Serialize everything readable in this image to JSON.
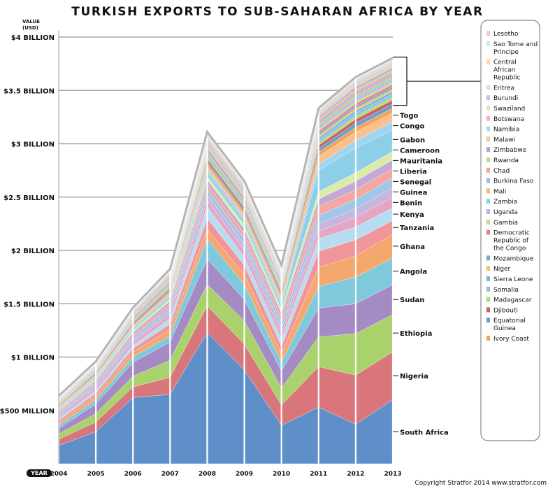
{
  "chart_data": {
    "type": "area",
    "title": "TURKISH EXPORTS TO SUB-SAHARAN AFRICA BY YEAR",
    "ylabel": "VALUE (USD)",
    "xlabel": "YEAR",
    "ylim": [
      0,
      4000000000
    ],
    "yticks": [
      {
        "value": 500000000,
        "label": "$500 MILLION"
      },
      {
        "value": 1000000000,
        "label": "$1 BILLION"
      },
      {
        "value": 1500000000,
        "label": "$1.5 BILLION"
      },
      {
        "value": 2000000000,
        "label": "$2 BILLION"
      },
      {
        "value": 2500000000,
        "label": "$2.5 BILLION"
      },
      {
        "value": 3000000000,
        "label": "$3 BILLION"
      },
      {
        "value": 3500000000,
        "label": "$3.5 BILLION"
      },
      {
        "value": 4000000000,
        "label": "$4 BILLION"
      }
    ],
    "x": [
      "2004",
      "2005",
      "2006",
      "2007",
      "2008",
      "2009",
      "2010",
      "2011",
      "2012",
      "2013"
    ],
    "grid": true,
    "stacked": true,
    "value_unit": "USD million",
    "series": [
      {
        "name": "South Africa",
        "color": "#5f8fc9",
        "values": [
          170,
          300,
          620,
          650,
          1230,
          880,
          360,
          530,
          370,
          600
        ]
      },
      {
        "name": "Nigeria",
        "color": "#d9767b",
        "values": [
          60,
          90,
          100,
          160,
          250,
          240,
          190,
          380,
          460,
          450
        ]
      },
      {
        "name": "Ethiopia",
        "color": "#a9d26c",
        "values": [
          50,
          80,
          100,
          160,
          200,
          220,
          160,
          280,
          390,
          350
        ]
      },
      {
        "name": "Sudan",
        "color": "#a58bc4",
        "values": [
          50,
          90,
          130,
          170,
          240,
          200,
          160,
          270,
          280,
          280
        ]
      },
      {
        "name": "Angola",
        "color": "#7ec9dc",
        "values": [
          30,
          40,
          50,
          60,
          190,
          140,
          80,
          200,
          250,
          250
        ]
      },
      {
        "name": "Ghana",
        "color": "#f4a86e",
        "values": [
          25,
          35,
          45,
          60,
          90,
          90,
          80,
          180,
          200,
          220
        ]
      },
      {
        "name": "Tanzania",
        "color": "#f1959b",
        "values": [
          20,
          25,
          35,
          50,
          100,
          90,
          70,
          150,
          150,
          130
        ]
      },
      {
        "name": "Kenya",
        "color": "#b6ddf2",
        "values": [
          20,
          25,
          30,
          50,
          110,
          80,
          70,
          120,
          120,
          120
        ]
      },
      {
        "name": "Benin",
        "color": "#e6a5c2",
        "values": [
          20,
          25,
          30,
          40,
          60,
          60,
          50,
          70,
          90,
          100
        ]
      },
      {
        "name": "Guinea",
        "color": "#c7b6de",
        "values": [
          15,
          20,
          25,
          35,
          55,
          55,
          50,
          70,
          80,
          90
        ]
      },
      {
        "name": "Senegal",
        "color": "#9fc7e9",
        "values": [
          15,
          20,
          25,
          35,
          50,
          55,
          50,
          80,
          90,
          90
        ]
      },
      {
        "name": "Liberia",
        "color": "#f4a7a2",
        "values": [
          10,
          15,
          20,
          30,
          45,
          50,
          50,
          80,
          90,
          90
        ]
      },
      {
        "name": "Mauritania",
        "color": "#c4a8d8",
        "values": [
          10,
          15,
          20,
          25,
          40,
          40,
          40,
          70,
          80,
          80
        ]
      },
      {
        "name": "Cameroon",
        "color": "#dbecaa",
        "values": [
          10,
          15,
          20,
          25,
          40,
          40,
          40,
          70,
          80,
          80
        ]
      },
      {
        "name": "Gabon",
        "color": "#8ecfe8",
        "values": [
          10,
          12,
          15,
          20,
          35,
          35,
          35,
          200,
          230,
          200
        ]
      },
      {
        "name": "Congo",
        "color": "#a2d4f2",
        "values": [
          8,
          10,
          12,
          18,
          30,
          30,
          30,
          60,
          70,
          80
        ]
      },
      {
        "name": "Togo",
        "color": "#fac08c",
        "values": [
          8,
          10,
          12,
          18,
          30,
          30,
          30,
          70,
          80,
          80
        ]
      },
      {
        "name": "Ivory Coast",
        "color": "#f0a45c",
        "values": [
          8,
          10,
          12,
          15,
          25,
          25,
          25,
          40,
          45,
          45
        ]
      },
      {
        "name": "Equatorial Guinea",
        "color": "#6b9ed3",
        "values": [
          6,
          8,
          10,
          12,
          20,
          20,
          20,
          35,
          40,
          40
        ]
      },
      {
        "name": "Djibouti",
        "color": "#d45c5c",
        "values": [
          6,
          8,
          10,
          12,
          20,
          20,
          20,
          30,
          35,
          35
        ]
      },
      {
        "name": "Madagascar",
        "color": "#b5d87a",
        "values": [
          5,
          7,
          9,
          11,
          18,
          18,
          18,
          25,
          28,
          28
        ]
      },
      {
        "name": "Somalia",
        "color": "#8fc2de",
        "values": [
          5,
          7,
          9,
          11,
          18,
          18,
          18,
          25,
          28,
          28
        ]
      },
      {
        "name": "Sierra Leone",
        "color": "#6fbddf",
        "values": [
          5,
          6,
          8,
          10,
          15,
          15,
          15,
          22,
          25,
          25
        ]
      },
      {
        "name": "Niger",
        "color": "#f6c16b",
        "values": [
          5,
          6,
          8,
          10,
          15,
          15,
          15,
          20,
          22,
          22
        ]
      },
      {
        "name": "Mozambique",
        "color": "#7fa6d3",
        "values": [
          5,
          6,
          8,
          10,
          15,
          15,
          15,
          20,
          22,
          22
        ]
      },
      {
        "name": "Democratic Republic of the Congo",
        "color": "#e97d84",
        "values": [
          5,
          6,
          8,
          10,
          15,
          15,
          15,
          20,
          22,
          22
        ]
      },
      {
        "name": "Gambia",
        "color": "#c0de8e",
        "values": [
          4,
          5,
          7,
          9,
          12,
          12,
          12,
          18,
          20,
          20
        ]
      },
      {
        "name": "Uganda",
        "color": "#c3b1dc",
        "values": [
          4,
          5,
          7,
          9,
          12,
          12,
          12,
          18,
          20,
          20
        ]
      },
      {
        "name": "Zambia",
        "color": "#86cfe3",
        "values": [
          4,
          5,
          7,
          9,
          12,
          12,
          12,
          18,
          20,
          20
        ]
      },
      {
        "name": "Mali",
        "color": "#f8b27a",
        "values": [
          4,
          5,
          7,
          9,
          12,
          12,
          12,
          18,
          20,
          20
        ]
      },
      {
        "name": "Burkina Faso",
        "color": "#98b9e0",
        "values": [
          4,
          5,
          7,
          9,
          12,
          12,
          12,
          18,
          20,
          20
        ]
      },
      {
        "name": "Chad",
        "color": "#f1a1a6",
        "values": [
          3,
          4,
          6,
          8,
          10,
          10,
          10,
          15,
          18,
          18
        ]
      },
      {
        "name": "Rwanda",
        "color": "#bad996",
        "values": [
          3,
          4,
          6,
          8,
          10,
          10,
          10,
          15,
          18,
          18
        ]
      },
      {
        "name": "Zimbabwe",
        "color": "#b6a2d6",
        "values": [
          3,
          4,
          6,
          8,
          10,
          10,
          10,
          15,
          18,
          18
        ]
      },
      {
        "name": "Malawi",
        "color": "#f7c49a",
        "values": [
          3,
          4,
          5,
          7,
          9,
          9,
          9,
          12,
          14,
          14
        ]
      },
      {
        "name": "Namibia",
        "color": "#b3d7ef",
        "values": [
          3,
          4,
          5,
          7,
          9,
          9,
          9,
          12,
          14,
          14
        ]
      },
      {
        "name": "Botswana",
        "color": "#f0b5b5",
        "values": [
          3,
          3,
          4,
          6,
          8,
          8,
          8,
          10,
          12,
          12
        ]
      },
      {
        "name": "Swaziland",
        "color": "#d7eaa8",
        "values": [
          2,
          3,
          4,
          5,
          7,
          7,
          7,
          9,
          10,
          10
        ]
      },
      {
        "name": "Burundi",
        "color": "#c9bfe2",
        "values": [
          2,
          3,
          4,
          5,
          7,
          7,
          7,
          9,
          10,
          10
        ]
      },
      {
        "name": "Eritrea",
        "color": "#c6e6f3",
        "values": [
          2,
          3,
          4,
          5,
          6,
          6,
          6,
          8,
          9,
          9
        ]
      },
      {
        "name": "Central African Republic",
        "color": "#fbd3ad",
        "values": [
          2,
          2,
          3,
          4,
          5,
          5,
          5,
          7,
          8,
          8
        ]
      },
      {
        "name": "Sao Tome and Principe",
        "color": "#cfe5f4",
        "values": [
          1,
          2,
          2,
          3,
          4,
          4,
          4,
          5,
          6,
          6
        ]
      },
      {
        "name": "Lesotho",
        "color": "#f3c9d4",
        "values": [
          1,
          1,
          2,
          2,
          3,
          3,
          3,
          4,
          5,
          5
        ]
      }
    ],
    "series_labels": [
      "South Africa",
      "Nigeria",
      "Ethiopia",
      "Sudan",
      "Angola",
      "Ghana",
      "Tanzania",
      "Kenya",
      "Benin",
      "Guinea",
      "Senegal",
      "Liberia",
      "Mauritania",
      "Cameroon",
      "Gabon",
      "Congo",
      "Togo"
    ],
    "legend": {
      "placement": "right",
      "items": [
        "Lesotho",
        "Sao Tome and Principe",
        "Central African Republic",
        "Eritrea",
        "Burundi",
        "Swaziland",
        "Botswana",
        "Namibia",
        "Malawi",
        "Zimbabwe",
        "Rwanda",
        "Chad",
        "Burkina Faso",
        "Mali",
        "Zambia",
        "Uganda",
        "Gambia",
        "Democratic Republic of the Congo",
        "Mozambique",
        "Niger",
        "Sierra Leone",
        "Somalia",
        "Madagascar",
        "Djibouti",
        "Equatorial Guinea",
        "Ivory Coast"
      ]
    }
  },
  "footer": {
    "copyright": "Copyright Stratfor 2014 www.stratfor.com"
  }
}
